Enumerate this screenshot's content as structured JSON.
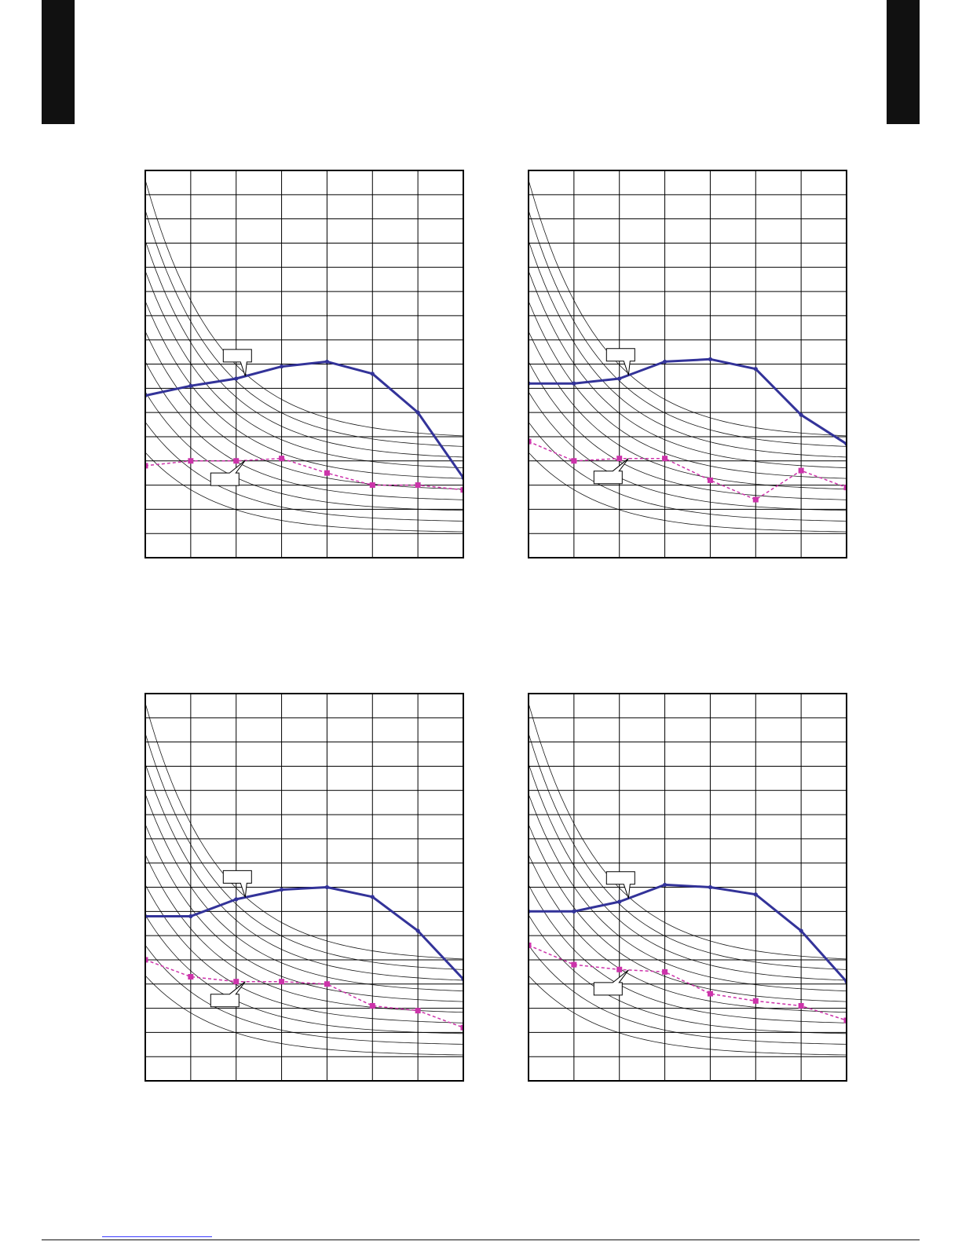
{
  "colors": {
    "grid": "#000000",
    "curve": "#1a1a1a",
    "series_solid": "#333399",
    "series_dashed": "#cc33aa",
    "page_tab": "#111111",
    "link": "#3a3aff"
  },
  "chart_data": [
    {
      "type": "line",
      "title": "",
      "xlabel": "",
      "ylabel": "",
      "xlim": [
        0,
        7
      ],
      "ylim": [
        0,
        16
      ],
      "grid": true,
      "x": [
        0,
        1,
        2,
        3,
        4,
        5,
        6,
        7
      ],
      "series": [
        {
          "style": "solid",
          "values": [
            6.7,
            7.1,
            7.4,
            7.9,
            8.1,
            7.6,
            6.0,
            3.3
          ]
        },
        {
          "style": "dashed",
          "values": [
            3.8,
            4.0,
            4.0,
            4.1,
            3.5,
            3.0,
            3.0,
            2.8
          ]
        }
      ],
      "callouts": [
        {
          "series": 0,
          "text": ""
        },
        {
          "series": 1,
          "text": ""
        }
      ]
    },
    {
      "type": "line",
      "title": "",
      "xlabel": "",
      "ylabel": "",
      "xlim": [
        0,
        7
      ],
      "ylim": [
        0,
        16
      ],
      "grid": true,
      "x": [
        0,
        1,
        2,
        3,
        4,
        5,
        6,
        7
      ],
      "series": [
        {
          "style": "solid",
          "values": [
            7.2,
            7.2,
            7.4,
            8.1,
            8.2,
            7.8,
            5.9,
            4.7
          ]
        },
        {
          "style": "dashed",
          "values": [
            4.8,
            4.0,
            4.1,
            4.1,
            3.2,
            2.4,
            3.6,
            2.9
          ]
        }
      ],
      "callouts": [
        {
          "series": 0,
          "text": ""
        },
        {
          "series": 1,
          "text": ""
        }
      ]
    },
    {
      "type": "line",
      "title": "",
      "xlabel": "",
      "ylabel": "",
      "xlim": [
        0,
        7
      ],
      "ylim": [
        0,
        16
      ],
      "grid": true,
      "x": [
        0,
        1,
        2,
        3,
        4,
        5,
        6,
        7
      ],
      "series": [
        {
          "style": "solid",
          "values": [
            6.8,
            6.8,
            7.5,
            7.9,
            8.0,
            7.6,
            6.2,
            4.2
          ]
        },
        {
          "style": "dashed",
          "values": [
            5.0,
            4.3,
            4.1,
            4.1,
            4.0,
            3.1,
            2.9,
            2.2
          ]
        }
      ],
      "callouts": [
        {
          "series": 0,
          "text": ""
        },
        {
          "series": 1,
          "text": ""
        }
      ]
    },
    {
      "type": "line",
      "title": "",
      "xlabel": "",
      "ylabel": "",
      "xlim": [
        0,
        7
      ],
      "ylim": [
        0,
        16
      ],
      "grid": true,
      "x": [
        0,
        1,
        2,
        3,
        4,
        5,
        6,
        7
      ],
      "series": [
        {
          "style": "solid",
          "values": [
            7.0,
            7.0,
            7.4,
            8.1,
            8.0,
            7.7,
            6.2,
            4.1
          ]
        },
        {
          "style": "dashed",
          "values": [
            5.6,
            4.8,
            4.6,
            4.5,
            3.6,
            3.3,
            3.1,
            2.5
          ]
        }
      ],
      "callouts": [
        {
          "series": 0,
          "text": ""
        },
        {
          "series": 1,
          "text": ""
        }
      ]
    }
  ]
}
